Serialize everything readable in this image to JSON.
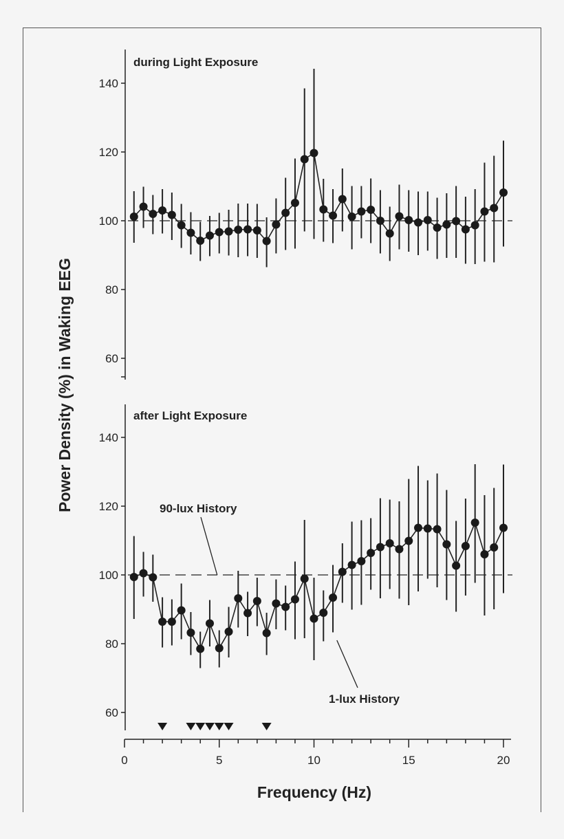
{
  "chart_data": {
    "type": "line",
    "ylabel": "Power Density (%) in Waking EEG",
    "xlabel": "Frequency (Hz)",
    "xlim": [
      0,
      20
    ],
    "xticks": [
      0,
      5,
      10,
      15,
      20
    ],
    "ylim": [
      55,
      150
    ],
    "yticks": [
      60,
      80,
      100,
      120,
      140
    ],
    "reference_line": 100,
    "panels": [
      {
        "title": "during Light Exposure",
        "series": [
          {
            "x": [
              0.5,
              1,
              1.5,
              2,
              2.5,
              3,
              3.5,
              4,
              4.5,
              5,
              5.5,
              6,
              6.5,
              7,
              7.5,
              8,
              8.5,
              9,
              9.5,
              10,
              10.5,
              11,
              11.5,
              12,
              12.5,
              13,
              13.5,
              14,
              14.5,
              15,
              15.5,
              16,
              16.5,
              17,
              17.5,
              18,
              18.5,
              19,
              19.5,
              20
            ],
            "y": [
              101.2,
              104.1,
              102,
              103,
              101.7,
              98.7,
              96.5,
              94.2,
              95.7,
              96.7,
              96.9,
              97.4,
              97.5,
              97.2,
              94.1,
              98.9,
              102.3,
              105.2,
              117.9,
              119.7,
              103.3,
              101.5,
              106.3,
              101.2,
              102.7,
              103.2,
              100,
              96.3,
              101.3,
              100.2,
              99.5,
              100.2,
              98,
              98.9,
              99.9,
              97.5,
              98.7,
              102.7,
              103.7,
              108.2
            ],
            "upper": [
              108.6,
              109.9,
              107.5,
              109.2,
              108.2,
              104.9,
              102.5,
              99.7,
              101.4,
              102.3,
              103.2,
              105,
              105,
              104.9,
              101,
              106.5,
              112.5,
              118.1,
              138.5,
              144.2,
              112.2,
              109.2,
              115.2,
              110.1,
              110.1,
              112.3,
              108.9,
              104.1,
              110.5,
              108.9,
              108.5,
              108.5,
              106.7,
              108,
              110.1,
              107,
              109.2,
              116.9,
              118.9,
              123.3
            ],
            "lower": [
              93.6,
              97.9,
              96.1,
              96.3,
              94.4,
              92.1,
              90.2,
              88.3,
              89.7,
              90.5,
              89.9,
              89.4,
              89.7,
              89.2,
              86.5,
              90.5,
              91.5,
              91.9,
              96.9,
              94.7,
              93.9,
              93.5,
              96.9,
              91.7,
              94.9,
              93.5,
              90.5,
              88.3,
              91.7,
              91,
              90,
              91.3,
              88.9,
              89.2,
              89.2,
              87.5,
              87.4,
              88.1,
              87.9,
              92.5
            ]
          }
        ],
        "annotations": []
      },
      {
        "title": "after Light Exposure",
        "series": [
          {
            "x": [
              0.5,
              1,
              1.5,
              2,
              2.5,
              3,
              3.5,
              4,
              4.5,
              5,
              5.5,
              6,
              6.5,
              7,
              7.5,
              8,
              8.5,
              9,
              9.5,
              10,
              10.5,
              11,
              11.5,
              12,
              12.5,
              13,
              13.5,
              14,
              14.5,
              15,
              15.5,
              16,
              16.5,
              17,
              17.5,
              18,
              18.5,
              19,
              19.5,
              20
            ],
            "y": [
              99.4,
              100.5,
              99.3,
              86.4,
              86.4,
              89.7,
              83.2,
              78.5,
              85.9,
              78.7,
              83.5,
              93.2,
              88.9,
              92.4,
              83.1,
              91.7,
              90.7,
              92.9,
              98.9,
              87.3,
              89,
              93.4,
              100.9,
              102.9,
              104,
              106.4,
              108.1,
              109.2,
              107.5,
              109.9,
              113.7,
              113.5,
              113.3,
              108.9,
              102.7,
              108.4,
              115.2,
              106,
              108,
              113.7
            ],
            "upper": [
              111.3,
              106.7,
              105.9,
              93.5,
              92.9,
              97.5,
              89.2,
              83.5,
              92.7,
              83.9,
              90.7,
              101.2,
              95.1,
              99.2,
              89,
              98.7,
              96.9,
              103.9,
              116,
              99.2,
              95.5,
              102.9,
              109.2,
              115.5,
              115.9,
              116.5,
              122.3,
              121.9,
              121.4,
              127.9,
              131.7,
              127.5,
              129.5,
              124.7,
              115.7,
              122.2,
              132.2,
              123.2,
              125.3,
              132.1
            ],
            "lower": [
              87.2,
              93.7,
              92.2,
              78.9,
              79.5,
              81.3,
              76.7,
              72.9,
              79.2,
              73.1,
              76,
              84.7,
              82.2,
              85.1,
              76.7,
              84.2,
              83.9,
              81.3,
              81.6,
              75.2,
              80.7,
              83.3,
              91.9,
              89.9,
              91.3,
              95.7,
              93.2,
              95.9,
              93.1,
              91.2,
              95.2,
              98.9,
              96.4,
              92.7,
              89.3,
              94,
              97.7,
              88.2,
              90,
              94.7
            ]
          }
        ],
        "significance_markers_x": [
          2,
          3.5,
          4,
          4.5,
          5,
          5.5,
          7.5
        ],
        "annotations": [
          {
            "text": "90-lux History",
            "points_to_x": 5,
            "points_to_y": 100
          },
          {
            "text": "1-lux History",
            "points_to_x": 11.1,
            "points_to_y": 81
          }
        ]
      }
    ]
  }
}
